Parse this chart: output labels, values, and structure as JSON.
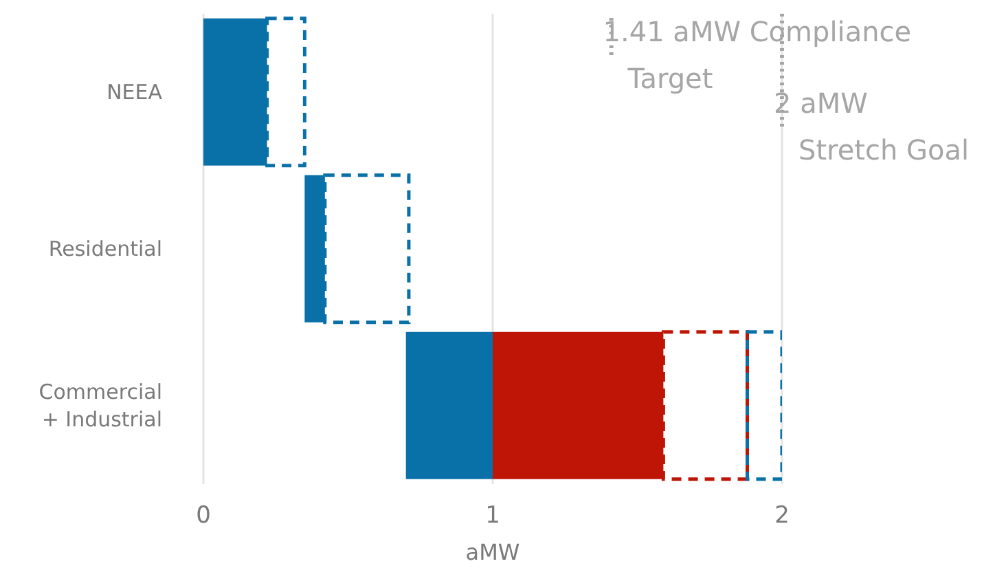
{
  "chart_data": {
    "type": "bar",
    "orientation": "horizontal",
    "xlabel": "aMW",
    "categories": [
      "NEEA",
      "Residential",
      "Commercial + Industrial"
    ],
    "series": [
      {
        "color": "#0a70a8",
        "line_style": "solid",
        "base": [
          0,
          0.35,
          0.7
        ],
        "values": [
          0.22,
          0.07,
          0.3
        ]
      },
      {
        "color": "#be1506",
        "line_style": "solid",
        "base": [
          null,
          null,
          1.0
        ],
        "values": [
          null,
          null,
          0.59
        ]
      },
      {
        "color": "#be1506",
        "line_style": "dashed",
        "base": [
          null,
          null,
          1.59
        ],
        "values": [
          null,
          null,
          0.29
        ]
      },
      {
        "color": "#0a70a8",
        "line_style": "dashed",
        "base": [
          0.22,
          0.42,
          1.88
        ],
        "values": [
          0.13,
          0.29,
          0.12
        ]
      }
    ],
    "xlim": [
      0,
      2
    ],
    "xticks": [
      0,
      1,
      2
    ],
    "grid": "x",
    "ref_lines": [
      {
        "axis": "x",
        "value": 1.41,
        "label": "1.41 aMW Compliance\nTarget",
        "color": "#a6a6a6",
        "line_style": "dotted"
      },
      {
        "axis": "x",
        "value": 2,
        "label": "2 aMW\nStretch Goal",
        "color": "#a6a6a6",
        "line_style": "dotted"
      }
    ]
  }
}
